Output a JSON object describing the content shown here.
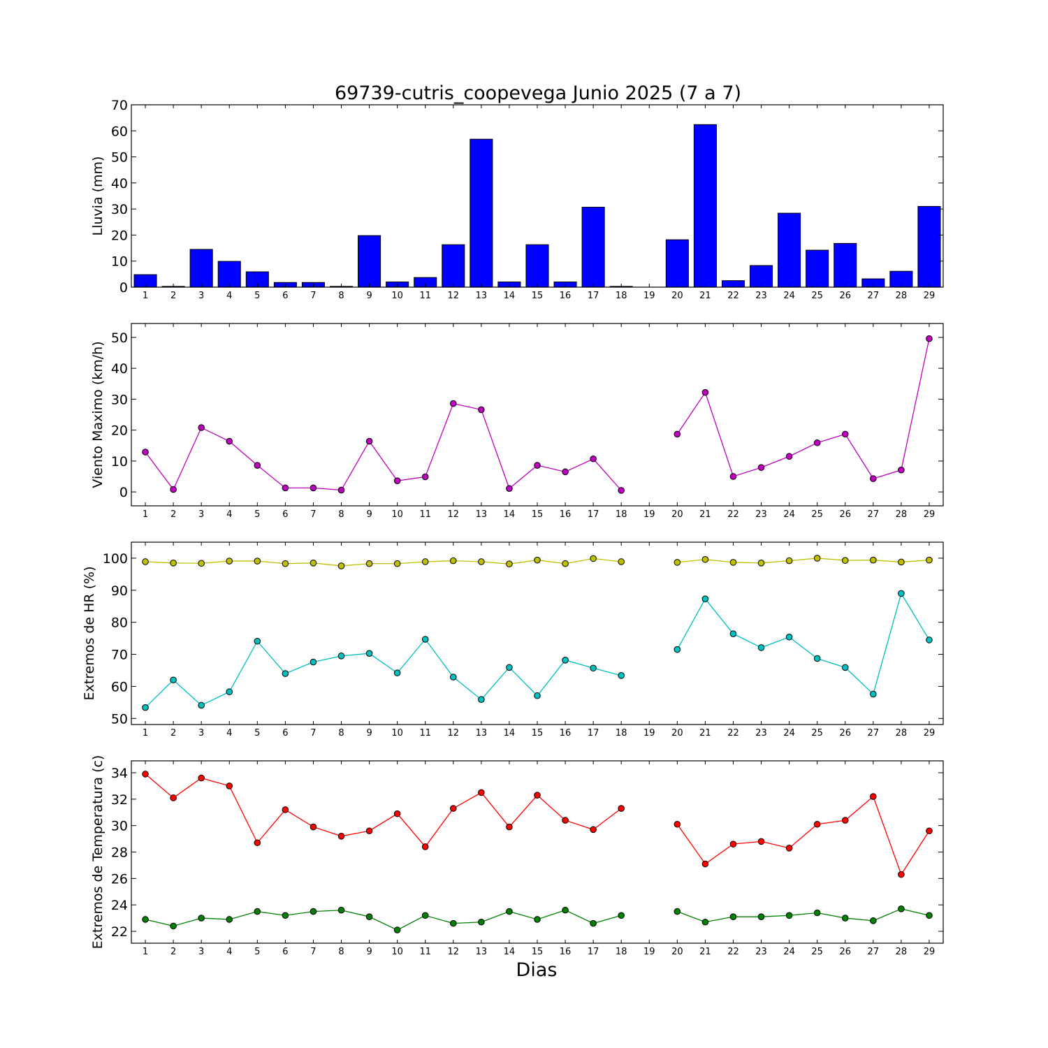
{
  "title": "69739-cutris_coopevega Junio 2025  (7 a 7)",
  "xlabel": "Dias",
  "colors": {
    "rain": "#0000ff",
    "wind": "#bf00bf",
    "hr_max": "#bfbf00",
    "hr_min": "#00bfbf",
    "temp_max": "#ff0000",
    "temp_min": "#008000"
  },
  "chart_data": [
    {
      "type": "bar",
      "ylabel": "Lluvia (mm)",
      "ylim": [
        0,
        70
      ],
      "yticks": [
        0,
        10,
        20,
        30,
        40,
        50,
        60,
        70
      ],
      "categories": [
        "1",
        "2",
        "3",
        "4",
        "5",
        "6",
        "7",
        "8",
        "9",
        "10",
        "11",
        "12",
        "13",
        "14",
        "15",
        "16",
        "17",
        "18",
        "19",
        "20",
        "21",
        "22",
        "23",
        "24",
        "25",
        "26",
        "27",
        "28",
        "29"
      ],
      "series": [
        {
          "color": "#0000ff",
          "values": [
            4.8,
            0.3,
            14.5,
            9.9,
            5.9,
            1.8,
            1.8,
            0.3,
            19.8,
            2.0,
            3.7,
            16.3,
            56.8,
            2.0,
            16.3,
            2.0,
            30.7,
            0.3,
            0,
            18.2,
            62.4,
            2.5,
            8.3,
            28.4,
            14.2,
            16.8,
            3.2,
            6.1,
            31.0
          ]
        }
      ]
    },
    {
      "type": "line",
      "ylabel": "Viento Maximo (km/h)",
      "ylim": [
        -4.5,
        54.5
      ],
      "yticks": [
        0,
        10,
        20,
        30,
        40,
        50
      ],
      "categories": [
        "1",
        "2",
        "3",
        "4",
        "5",
        "6",
        "7",
        "8",
        "9",
        "10",
        "11",
        "12",
        "13",
        "14",
        "15",
        "16",
        "17",
        "18",
        "19",
        "20",
        "21",
        "22",
        "23",
        "24",
        "25",
        "26",
        "27",
        "28",
        "29"
      ],
      "series": [
        {
          "color": "#bf00bf",
          "values": [
            12.9,
            0.8,
            20.8,
            16.4,
            8.6,
            1.3,
            1.3,
            0.6,
            16.4,
            3.6,
            4.9,
            28.6,
            26.6,
            1.1,
            8.6,
            6.5,
            10.7,
            0.5,
            null,
            18.7,
            32.2,
            5.0,
            7.9,
            11.5,
            15.9,
            18.7,
            4.3,
            7.1,
            49.6
          ]
        }
      ]
    },
    {
      "type": "line",
      "ylabel": "Extremos de HR (%)",
      "ylim": [
        48.1,
        105
      ],
      "yticks": [
        50,
        60,
        70,
        80,
        90,
        100
      ],
      "categories": [
        "1",
        "2",
        "3",
        "4",
        "5",
        "6",
        "7",
        "8",
        "9",
        "10",
        "11",
        "12",
        "13",
        "14",
        "15",
        "16",
        "17",
        "18",
        "19",
        "20",
        "21",
        "22",
        "23",
        "24",
        "25",
        "26",
        "27",
        "28",
        "29"
      ],
      "series": [
        {
          "color": "#bfbf00",
          "values": [
            98.9,
            98.5,
            98.4,
            99.1,
            99.1,
            98.3,
            98.5,
            97.6,
            98.3,
            98.3,
            98.9,
            99.2,
            98.9,
            98.2,
            99.4,
            98.3,
            99.9,
            98.9,
            null,
            98.7,
            99.6,
            98.7,
            98.5,
            99.2,
            100.0,
            99.3,
            99.4,
            98.8,
            99.4
          ]
        },
        {
          "color": "#00bfbf",
          "values": [
            53.4,
            62.0,
            54.1,
            58.3,
            74.1,
            64.0,
            67.6,
            69.5,
            70.3,
            64.2,
            74.7,
            62.9,
            55.9,
            65.9,
            57.1,
            68.2,
            65.7,
            63.4,
            null,
            71.5,
            87.3,
            76.4,
            72.1,
            75.4,
            68.7,
            65.9,
            57.6,
            89.0,
            74.5
          ]
        }
      ]
    },
    {
      "type": "line",
      "ylabel": "Extremos de Temperatura (c)",
      "ylim": [
        21.1,
        34.9
      ],
      "yticks": [
        22,
        24,
        26,
        28,
        30,
        32,
        34
      ],
      "categories": [
        "1",
        "2",
        "3",
        "4",
        "5",
        "6",
        "7",
        "8",
        "9",
        "10",
        "11",
        "12",
        "13",
        "14",
        "15",
        "16",
        "17",
        "18",
        "19",
        "20",
        "21",
        "22",
        "23",
        "24",
        "25",
        "26",
        "27",
        "28",
        "29"
      ],
      "series": [
        {
          "color": "#ff0000",
          "values": [
            33.9,
            32.1,
            33.6,
            33.0,
            28.7,
            31.2,
            29.9,
            29.2,
            29.6,
            30.9,
            28.4,
            31.3,
            32.5,
            29.9,
            32.3,
            30.4,
            29.7,
            31.3,
            null,
            30.1,
            27.1,
            28.6,
            28.8,
            28.3,
            30.1,
            30.4,
            32.2,
            26.3,
            29.6
          ]
        },
        {
          "color": "#008000",
          "values": [
            22.9,
            22.4,
            23.0,
            22.9,
            23.5,
            23.2,
            23.5,
            23.6,
            23.1,
            22.1,
            23.2,
            22.6,
            22.7,
            23.5,
            22.9,
            23.6,
            22.6,
            23.2,
            null,
            23.5,
            22.7,
            23.1,
            23.1,
            23.2,
            23.4,
            23.0,
            22.8,
            23.7,
            23.2
          ]
        }
      ]
    }
  ]
}
